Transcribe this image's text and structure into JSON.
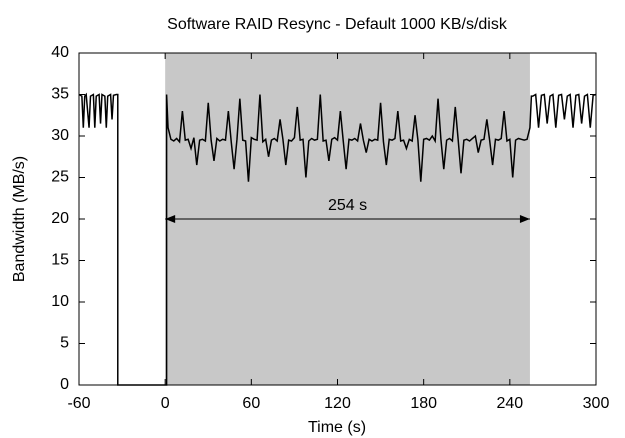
{
  "chart_data": {
    "type": "line",
    "title": "Software RAID Resync - Default 1000 KB/s/disk",
    "x_label": "Time (s)",
    "y_label": "Bandwidth (MB/s)",
    "xlim": [
      -60,
      300
    ],
    "xticks": [
      -60,
      0,
      60,
      120,
      180,
      240,
      300
    ],
    "ylim": [
      0,
      40
    ],
    "yticks": [
      0,
      5,
      10,
      15,
      20,
      25,
      30,
      35,
      40
    ],
    "shaded_span": {
      "x": [
        0,
        254
      ],
      "color": "#c8c8c8"
    },
    "annotation": {
      "text": "254 s",
      "x": [
        0,
        254
      ],
      "y": 20
    },
    "series": [
      {
        "color": "#000000",
        "x": [
          -60,
          -58,
          -57,
          -56,
          -55,
          -53,
          -52,
          -50,
          -49,
          -48,
          -46,
          -45,
          -44,
          -42,
          -41,
          -40,
          -38,
          -37,
          -36,
          -34,
          -33,
          -33,
          0,
          1,
          1,
          2,
          4,
          6,
          8,
          10,
          12,
          14,
          16,
          18,
          20,
          22,
          24,
          26,
          28,
          30,
          32,
          34,
          36,
          38,
          40,
          42,
          44,
          46,
          48,
          50,
          52,
          54,
          56,
          58,
          60,
          62,
          64,
          66,
          68,
          70,
          72,
          74,
          76,
          78,
          80,
          82,
          84,
          86,
          88,
          90,
          92,
          94,
          96,
          98,
          100,
          102,
          104,
          106,
          108,
          110,
          112,
          114,
          116,
          118,
          120,
          122,
          124,
          126,
          128,
          130,
          132,
          134,
          136,
          138,
          140,
          142,
          144,
          146,
          148,
          150,
          152,
          154,
          156,
          158,
          160,
          162,
          164,
          166,
          168,
          170,
          172,
          174,
          176,
          178,
          180,
          182,
          184,
          186,
          188,
          190,
          192,
          194,
          196,
          198,
          200,
          202,
          204,
          206,
          208,
          210,
          212,
          214,
          216,
          218,
          220,
          222,
          224,
          226,
          228,
          230,
          232,
          234,
          236,
          238,
          240,
          242,
          244,
          246,
          248,
          250,
          252,
          254,
          255,
          256,
          258,
          260,
          262,
          264,
          266,
          268,
          270,
          272,
          274,
          276,
          278,
          280,
          282,
          284,
          286,
          288,
          290,
          292,
          294,
          296,
          298,
          300
        ],
        "values": [
          35,
          34.8,
          31,
          34.8,
          35,
          31,
          34.8,
          35,
          31,
          34.8,
          35,
          31.5,
          35,
          34.8,
          31,
          34.8,
          35,
          32,
          34.9,
          35,
          35,
          0,
          0,
          0,
          35,
          31,
          29.6,
          29.4,
          29.7,
          29.3,
          33,
          29.5,
          29.6,
          28.5,
          29.8,
          26.5,
          29.5,
          29.6,
          29.4,
          34,
          29.5,
          27,
          29.7,
          29.4,
          29.6,
          29.5,
          33,
          29.3,
          26,
          29.6,
          34.5,
          29.5,
          29.4,
          24.5,
          29.8,
          29.6,
          29.5,
          35,
          29.3,
          29.6,
          27.5,
          29.5,
          29.7,
          29.4,
          32,
          29.6,
          26.5,
          29.5,
          29.4,
          29.8,
          33.5,
          29.5,
          29.6,
          25,
          29.4,
          29.7,
          29.5,
          29.6,
          35,
          29.4,
          29.5,
          27,
          29.6,
          29.8,
          29.5,
          33,
          29.4,
          26,
          29.6,
          29.5,
          29.7,
          29.4,
          31.5,
          29.5,
          28,
          29.6,
          29.4,
          29.6,
          29.5,
          34,
          29.3,
          26.5,
          29.6,
          29.5,
          29.7,
          33,
          29.4,
          29.5,
          28.5,
          29.6,
          29.4,
          32.5,
          29.5,
          24.5,
          29.6,
          29.7,
          29.5,
          30,
          29.4,
          34.5,
          29.6,
          26,
          29.5,
          29.7,
          29.4,
          33.5,
          29.6,
          25.5,
          29.5,
          29.6,
          29.4,
          29.7,
          30,
          28,
          29.5,
          29.6,
          32,
          29.4,
          26.5,
          29.6,
          29.5,
          29.7,
          33,
          29.4,
          29.6,
          25,
          29.5,
          29.7,
          29.6,
          29.5,
          29.6,
          31,
          34.8,
          34.8,
          35,
          31,
          34.9,
          35,
          31.5,
          34.8,
          35,
          31,
          34.9,
          35,
          32,
          34.8,
          35,
          31,
          34.9,
          35,
          31.5,
          34.8,
          35,
          31,
          34.9,
          35
        ]
      }
    ]
  }
}
